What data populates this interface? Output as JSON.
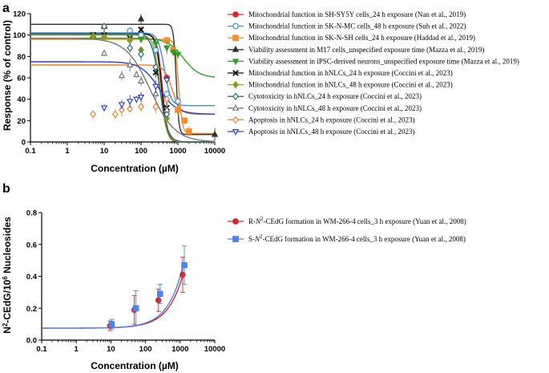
{
  "chart_data": [
    {
      "panel": "a",
      "type": "scatter",
      "xscale": "log",
      "xlim": [
        0.1,
        10000
      ],
      "ylim": [
        0,
        120
      ],
      "xticks": [
        "0.1",
        "1",
        "10",
        "100",
        "1000",
        "10000"
      ],
      "yticks": [
        "0",
        "20",
        "40",
        "60",
        "80",
        "100",
        "120"
      ],
      "xlabel": "Concentration (µM)",
      "ylabel": "Response (% of control)",
      "series": [
        {
          "name": "Mitochondrial function in SH-SY5Y cells_24 h exposure (Nan et al., 2019)",
          "color": "#d62728",
          "marker": "circle",
          "fill": true,
          "x": [
            500
          ],
          "y": [
            60
          ],
          "curve": {
            "bottom": 0,
            "top": 101,
            "ec50": 380,
            "hill": 6
          }
        },
        {
          "name": "Mitochondrial function in SK-N-MC cells_48 h exposure (Suh et al., 2022)",
          "color": "#3a8ee6",
          "marker": "circle",
          "fill": false,
          "x": [
            50,
            100,
            250,
            500,
            1000
          ],
          "y": [
            104,
            100,
            86,
            45,
            38
          ],
          "curve": {
            "bottom": 34,
            "top": 102,
            "ec50": 430,
            "hill": 5
          }
        },
        {
          "name": "Mitochondrial function in SK-N-SH cells_24 h exposure (Haddad et al., 2019)",
          "color": "#f28e2b",
          "marker": "square",
          "fill": true,
          "x": [
            500,
            750,
            1000,
            1500,
            2000
          ],
          "y": [
            95,
            86,
            30,
            20,
            10
          ],
          "curve": {
            "bottom": 8,
            "top": 96,
            "ec50": 1050,
            "hill": 9
          }
        },
        {
          "name": "Viability assessment in M17 cells_unspecified exposure time (Mazza et al., 2019)",
          "color": "#333333",
          "marker": "triangle",
          "fill": true,
          "x": [
            10,
            100,
            10000
          ],
          "y": [
            108,
            115,
            7
          ],
          "curve": {
            "bottom": 7,
            "top": 110,
            "ec50": 900,
            "hill": 12
          }
        },
        {
          "name": "Viability assessment in iPSC-derived neurons_unspecified exposure time (Mazza et al., 2019)",
          "color": "#2ca02c",
          "marker": "triangle-down",
          "fill": true,
          "x": [
            100,
            250,
            500,
            750,
            1000
          ],
          "y": [
            96,
            92,
            88,
            84,
            82
          ],
          "curve": {
            "bottom": 60,
            "top": 97,
            "ec50": 1400,
            "hill": 2
          }
        },
        {
          "name": "Mitochondrial function in hNLCs_24 h exposure (Coccini et al., 2023)",
          "color": "#111111",
          "marker": "x",
          "fill": false,
          "x": [
            5,
            10,
            50,
            100,
            250,
            500
          ],
          "y": [
            100,
            100,
            97,
            105,
            65,
            32
          ],
          "curve": {
            "bottom": 0,
            "top": 101,
            "ec50": 360,
            "hill": 6
          }
        },
        {
          "name": "Mitochondrial function in hNLCs_48 h exposure (Coccini et al., 2023)",
          "color": "#8a9a2b",
          "marker": "diamond",
          "fill": true,
          "x": [
            5,
            10,
            50,
            100,
            250,
            500
          ],
          "y": [
            99,
            98,
            95,
            86,
            70,
            22
          ],
          "curve": {
            "bottom": 0,
            "top": 100,
            "ec50": 330,
            "hill": 5
          }
        },
        {
          "name": "Cytotoxicity in hNLCs_24 h exposure (Coccini et al., 2023)",
          "color": "#2a6f6a",
          "marker": "diamond",
          "fill": false,
          "x": [
            10,
            50,
            100,
            250,
            500
          ],
          "y": [
            108,
            88,
            82,
            70,
            26
          ],
          "curve": {
            "bottom": 0,
            "top": 101,
            "ec50": 320,
            "hill": 4
          }
        },
        {
          "name": "Cytotoxicity in hNLCs_48 h exposure (Coccini et al., 2023)",
          "color": "#777777",
          "marker": "triangle",
          "fill": false,
          "x": [
            10,
            30,
            50,
            75,
            100,
            250,
            500
          ],
          "y": [
            83,
            62,
            72,
            63,
            57,
            45,
            30
          ],
          "curve": {
            "bottom": 0,
            "top": 97,
            "ec50": 180,
            "hill": 1.3
          }
        },
        {
          "name": "Apoptosis in hNLCs_24 h exposure (Coccini et al., 2023)",
          "color": "#f07f2a",
          "marker": "diamond",
          "fill": false,
          "x": [
            5,
            20,
            30,
            50,
            100,
            250,
            500
          ],
          "y": [
            26,
            26,
            30,
            31,
            33,
            33,
            40
          ],
          "curve": {
            "bottom": 26,
            "top": 72,
            "ec50": 700,
            "hill": 4
          }
        },
        {
          "name": "Apoptosis in hNLCs_48 h exposure (Coccini et al., 2023)",
          "color": "#2f3fd0",
          "marker": "triangle-down",
          "fill": false,
          "x": [
            10,
            30,
            50,
            75,
            100,
            250,
            500
          ],
          "y": [
            32,
            35,
            38,
            40,
            42,
            52,
            58
          ],
          "curve": {
            "bottom": 26,
            "top": 75,
            "ec50": 300,
            "hill": 1.8
          }
        }
      ]
    },
    {
      "panel": "b",
      "type": "scatter",
      "xscale": "log",
      "xlim": [
        0.1,
        10000
      ],
      "ylim": [
        0,
        0.8
      ],
      "xticks": [
        "0.1",
        "1",
        "10",
        "100",
        "1000",
        "10000"
      ],
      "yticks": [
        "0.0",
        "0.2",
        "0.4",
        "0.6",
        "0.8"
      ],
      "xlabel": "Concentration (µM)",
      "ylabel": "N2-CEdG/106 Nucleosides",
      "series": [
        {
          "name": "R-N2-CEdG formation in WM-266-4 cells_3 h exposure (Yuan et al., 2008)",
          "color": "#d62728",
          "marker": "circle",
          "fill": true,
          "x": [
            10,
            50,
            250,
            1250
          ],
          "y": [
            0.09,
            0.19,
            0.25,
            0.41
          ],
          "err": [
            0.03,
            0.09,
            0.07,
            0.11
          ],
          "curve": {
            "a": 0.075,
            "k": 0.0002803
          }
        },
        {
          "name": "S-N2-CEdG formation in WM-266-4 cells_3 h exposure (Yuan et al., 2008)",
          "color": "#4a86e8",
          "marker": "square",
          "fill": true,
          "x": [
            10,
            50,
            250,
            1250
          ],
          "y": [
            0.1,
            0.2,
            0.29,
            0.47
          ],
          "err": [
            0.03,
            0.11,
            0.06,
            0.12
          ],
          "curve": {
            "a": 0.075,
            "k": 0.0003256
          }
        }
      ]
    }
  ],
  "labels": {
    "panel_a": "a",
    "panel_b": "b",
    "a_xlabel": "Concentration (µM)",
    "a_ylabel": "Response (% of control)",
    "b_xlabel": "Concentration (µM)",
    "b_ylabel_main": "N",
    "b_ylabel_sup1": "2",
    "b_ylabel_mid": "-CEdG/10",
    "b_ylabel_sup2": "6",
    "b_ylabel_end": " Nucleosides",
    "b_legend_1_pre": "R-",
    "b_legend_1_n": "N",
    "b_legend_1_sup": "2",
    "b_legend_1_post": "-CEdG formation in WM-266-4 cells_3 h exposure (Yuan et al., 2008)",
    "b_legend_2_pre": "S-",
    "b_legend_2_n": "N",
    "b_legend_2_sup": "2",
    "b_legend_2_post": "-CEdG formation in WM-266-4 cells_3 h exposure (Yuan et al., 2008)"
  }
}
